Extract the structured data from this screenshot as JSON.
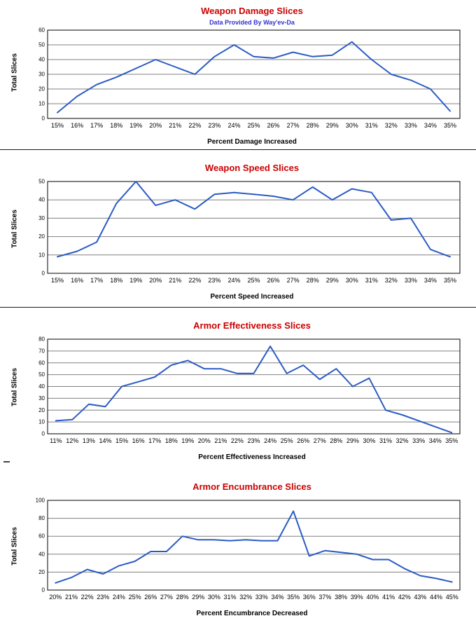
{
  "colors": {
    "title_red": "#CC0000",
    "subtitle_blue": "#3333CC",
    "line_blue": "#2A5BC4",
    "gridline": "#808080",
    "plot_border": "#000000",
    "axis_text": "#000000"
  },
  "chart_data": [
    {
      "type": "line",
      "title": "Weapon Damage Slices",
      "subtitle": "Data Provided By Way'ev-Da",
      "ylabel": "Total Slices",
      "xlabel": "Percent Damage Increased",
      "categories": [
        "15%",
        "16%",
        "17%",
        "18%",
        "19%",
        "20%",
        "21%",
        "22%",
        "23%",
        "24%",
        "25%",
        "26%",
        "27%",
        "28%",
        "29%",
        "30%",
        "31%",
        "32%",
        "33%",
        "34%",
        "35%"
      ],
      "values": [
        4,
        15,
        23,
        28,
        34,
        40,
        35,
        30,
        42,
        50,
        42,
        41,
        45,
        42,
        43,
        52,
        40,
        30,
        26,
        20,
        5
      ],
      "ylim": [
        0,
        60
      ],
      "ytick_step": 10,
      "grid": true,
      "legend": "none"
    },
    {
      "type": "line",
      "title": "Weapon Speed Slices",
      "ylabel": "Total Slices",
      "xlabel": "Percent Speed Increased",
      "categories": [
        "15%",
        "16%",
        "17%",
        "18%",
        "19%",
        "20%",
        "21%",
        "22%",
        "23%",
        "24%",
        "25%",
        "26%",
        "27%",
        "28%",
        "29%",
        "30%",
        "31%",
        "32%",
        "33%",
        "34%",
        "35%"
      ],
      "values": [
        9,
        12,
        17,
        38,
        50,
        37,
        40,
        35,
        43,
        44,
        43,
        42,
        40,
        47,
        40,
        46,
        44,
        29,
        30,
        13,
        9
      ],
      "ylim": [
        0,
        50
      ],
      "ytick_step": 10,
      "grid": true,
      "legend": "none"
    },
    {
      "type": "line",
      "title": "Armor Effectiveness Slices",
      "ylabel": "Total Slices",
      "xlabel": "Percent Effectiveness Increased",
      "categories": [
        "11%",
        "12%",
        "13%",
        "14%",
        "15%",
        "16%",
        "17%",
        "18%",
        "19%",
        "20%",
        "21%",
        "22%",
        "23%",
        "24%",
        "25%",
        "26%",
        "27%",
        "28%",
        "29%",
        "30%",
        "31%",
        "32%",
        "33%",
        "34%",
        "35%"
      ],
      "values": [
        11,
        12,
        25,
        23,
        40,
        44,
        48,
        58,
        62,
        55,
        55,
        51,
        51,
        74,
        51,
        58,
        46,
        55,
        40,
        47,
        20,
        16,
        11,
        6,
        1
      ],
      "ylim": [
        0,
        80
      ],
      "ytick_step": 10,
      "grid": true,
      "legend": "none"
    },
    {
      "type": "line",
      "title": "Armor Encumbrance Slices",
      "ylabel": "Total Slices",
      "xlabel": "Percent Encumbrance Decreased",
      "categories": [
        "20%",
        "21%",
        "22%",
        "23%",
        "24%",
        "25%",
        "26%",
        "27%",
        "28%",
        "29%",
        "30%",
        "31%",
        "32%",
        "33%",
        "34%",
        "35%",
        "36%",
        "37%",
        "38%",
        "39%",
        "40%",
        "41%",
        "42%",
        "43%",
        "44%",
        "45%"
      ],
      "values": [
        8,
        14,
        23,
        18,
        27,
        32,
        43,
        43,
        60,
        56,
        56,
        55,
        56,
        55,
        55,
        88,
        38,
        44,
        42,
        40,
        34,
        34,
        24,
        16,
        13,
        9
      ],
      "ylim": [
        0,
        100
      ],
      "ytick_step": 20,
      "grid": true,
      "legend": "none"
    }
  ]
}
